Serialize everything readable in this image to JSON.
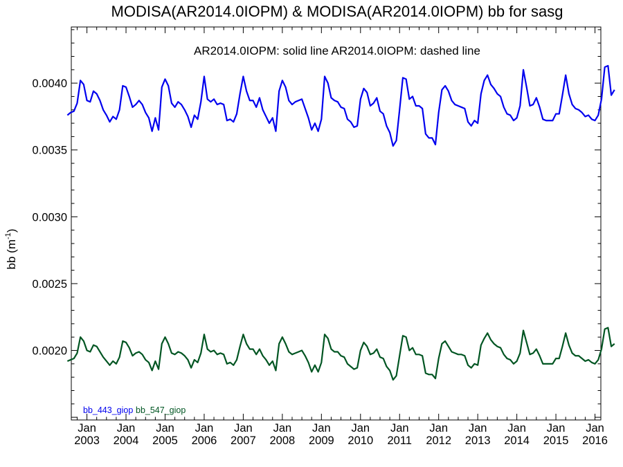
{
  "chart_data": {
    "type": "line",
    "title": "MODISA(AR2014.0IOPM) & MODISA(AR2014.0IOPM)  bb for sasg",
    "legend_note": "AR2014.0IOPM: solid line   AR2014.0IOPM: dashed line",
    "ylabel": "bb (m",
    "ylabel_sup": "-1",
    "ylabel_close": ")",
    "ylim": [
      0.00148,
      0.00442
    ],
    "xlim": [
      2002.6,
      2016.15
    ],
    "grid": false,
    "legend_position": "bottom-left",
    "y_ticks": [
      0.002,
      0.0025,
      0.003,
      0.0035,
      0.004
    ],
    "y_tick_labels": [
      "0.0020",
      "0.0025",
      "0.0030",
      "0.0035",
      "0.0040"
    ],
    "x_ticks": [
      2003,
      2004,
      2005,
      2006,
      2007,
      2008,
      2009,
      2010,
      2011,
      2012,
      2013,
      2014,
      2015,
      2016
    ],
    "x_tick_month": "Jan",
    "x_tick_years": [
      "2003",
      "2004",
      "2005",
      "2006",
      "2007",
      "2008",
      "2009",
      "2010",
      "2011",
      "2012",
      "2013",
      "2014",
      "2015",
      "2016"
    ],
    "x_start": "2002-07",
    "series": [
      {
        "name": "bb_443_giop",
        "color": "#0000ee",
        "values": [
          0.00376,
          0.00378,
          0.00379,
          0.00385,
          0.00402,
          0.00399,
          0.00387,
          0.00386,
          0.00394,
          0.00392,
          0.00387,
          0.0038,
          0.00376,
          0.00371,
          0.00375,
          0.00373,
          0.0038,
          0.00398,
          0.00397,
          0.0039,
          0.00382,
          0.00384,
          0.00387,
          0.00384,
          0.00378,
          0.00374,
          0.00364,
          0.00374,
          0.00365,
          0.00397,
          0.00403,
          0.00398,
          0.00385,
          0.00382,
          0.00386,
          0.00384,
          0.0038,
          0.00375,
          0.00367,
          0.00376,
          0.00373,
          0.00386,
          0.00405,
          0.00388,
          0.00386,
          0.00388,
          0.00384,
          0.00385,
          0.00384,
          0.00372,
          0.00373,
          0.00371,
          0.00377,
          0.00392,
          0.00405,
          0.00394,
          0.00387,
          0.00387,
          0.00382,
          0.00389,
          0.0038,
          0.00375,
          0.0037,
          0.00374,
          0.00364,
          0.00394,
          0.00402,
          0.00397,
          0.00387,
          0.00384,
          0.00386,
          0.00387,
          0.00388,
          0.00381,
          0.00374,
          0.00365,
          0.0037,
          0.00364,
          0.00373,
          0.00405,
          0.004,
          0.00389,
          0.00387,
          0.00386,
          0.00382,
          0.00381,
          0.00373,
          0.00371,
          0.00367,
          0.00368,
          0.00388,
          0.00396,
          0.00393,
          0.00383,
          0.00385,
          0.00389,
          0.00379,
          0.00377,
          0.00368,
          0.00363,
          0.00353,
          0.00357,
          0.0038,
          0.00404,
          0.00403,
          0.00388,
          0.0039,
          0.00383,
          0.00383,
          0.00381,
          0.00362,
          0.00359,
          0.00359,
          0.00354,
          0.00378,
          0.00395,
          0.00398,
          0.00394,
          0.00387,
          0.00384,
          0.00383,
          0.00382,
          0.00381,
          0.00371,
          0.00368,
          0.00372,
          0.0037,
          0.00392,
          0.00402,
          0.00406,
          0.00399,
          0.00396,
          0.00392,
          0.0039,
          0.00382,
          0.00377,
          0.00376,
          0.00372,
          0.00374,
          0.00383,
          0.0041,
          0.00397,
          0.00383,
          0.00384,
          0.00389,
          0.00382,
          0.00373,
          0.00372,
          0.00372,
          0.00372,
          0.00377,
          0.00377,
          0.00391,
          0.00406,
          0.00392,
          0.00384,
          0.00381,
          0.0038,
          0.00378,
          0.00375,
          0.00376,
          0.00373,
          0.00372,
          0.00376,
          0.00388,
          0.00412,
          0.00413,
          0.00391,
          0.00395
        ]
      },
      {
        "name": "bb_547_giop",
        "color": "#005522",
        "values": [
          0.00192,
          0.00193,
          0.00194,
          0.00198,
          0.0021,
          0.00207,
          0.002,
          0.00199,
          0.00204,
          0.00203,
          0.00199,
          0.00195,
          0.00192,
          0.00189,
          0.00192,
          0.0019,
          0.00195,
          0.00207,
          0.00206,
          0.00202,
          0.00196,
          0.00198,
          0.00199,
          0.00197,
          0.00193,
          0.00191,
          0.00185,
          0.00192,
          0.00186,
          0.00205,
          0.0021,
          0.00205,
          0.00198,
          0.00197,
          0.00199,
          0.00198,
          0.00196,
          0.00193,
          0.00187,
          0.00193,
          0.00191,
          0.00198,
          0.00212,
          0.00201,
          0.00199,
          0.002,
          0.00197,
          0.00198,
          0.00197,
          0.0019,
          0.00191,
          0.00189,
          0.00193,
          0.00203,
          0.00212,
          0.00205,
          0.00201,
          0.00201,
          0.00197,
          0.00201,
          0.00196,
          0.00193,
          0.00189,
          0.00192,
          0.00185,
          0.00205,
          0.0021,
          0.00205,
          0.00199,
          0.00197,
          0.00198,
          0.00199,
          0.002,
          0.00196,
          0.00191,
          0.00184,
          0.00189,
          0.00184,
          0.00191,
          0.00212,
          0.00209,
          0.00201,
          0.00199,
          0.00199,
          0.00196,
          0.00195,
          0.0019,
          0.00188,
          0.00186,
          0.00187,
          0.002,
          0.00206,
          0.00203,
          0.00197,
          0.00198,
          0.00201,
          0.00195,
          0.00194,
          0.00188,
          0.00185,
          0.00178,
          0.00181,
          0.00196,
          0.00211,
          0.0021,
          0.002,
          0.00202,
          0.00197,
          0.00197,
          0.00196,
          0.00183,
          0.00182,
          0.00182,
          0.00179,
          0.00194,
          0.00205,
          0.00207,
          0.00203,
          0.00199,
          0.00198,
          0.00197,
          0.00197,
          0.00196,
          0.00189,
          0.00187,
          0.0019,
          0.00189,
          0.00204,
          0.00209,
          0.00213,
          0.00208,
          0.00205,
          0.00203,
          0.00202,
          0.00197,
          0.00194,
          0.00193,
          0.0019,
          0.00192,
          0.00198,
          0.00215,
          0.00206,
          0.00197,
          0.00198,
          0.00201,
          0.00196,
          0.0019,
          0.0019,
          0.0019,
          0.0019,
          0.00194,
          0.00194,
          0.00203,
          0.00213,
          0.00204,
          0.00198,
          0.00196,
          0.00196,
          0.00194,
          0.00192,
          0.00193,
          0.00191,
          0.0019,
          0.00193,
          0.00201,
          0.00216,
          0.00217,
          0.00203,
          0.00205
        ]
      }
    ]
  }
}
